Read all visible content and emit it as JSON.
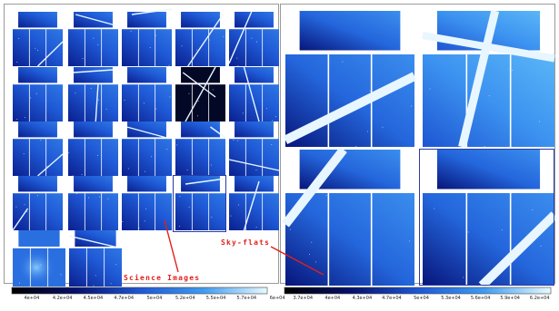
{
  "annotations": {
    "science": "Science Images",
    "skyflats": "Sky-flats"
  },
  "colorbars": {
    "left": {
      "ticks": [
        "4e+04",
        "4.2e+04",
        "4.5e+04",
        "4.7e+04",
        "5e+04",
        "5.2e+04",
        "5.5e+04",
        "5.7e+04",
        "6e+04"
      ]
    },
    "right": {
      "ticks": [
        "3.7e+04",
        "4e+04",
        "4.3e+04",
        "4.7e+04",
        "5e+04",
        "5.3e+04",
        "5.6e+04",
        "5.9e+04",
        "6.2e+04"
      ]
    }
  },
  "colors": {
    "dark": "#020414",
    "deep": "#0a1f8f",
    "mid": "#1f5ad6",
    "light": "#3f9bf0",
    "pale": "#9fdcff",
    "annotation": "#e0201a"
  }
}
